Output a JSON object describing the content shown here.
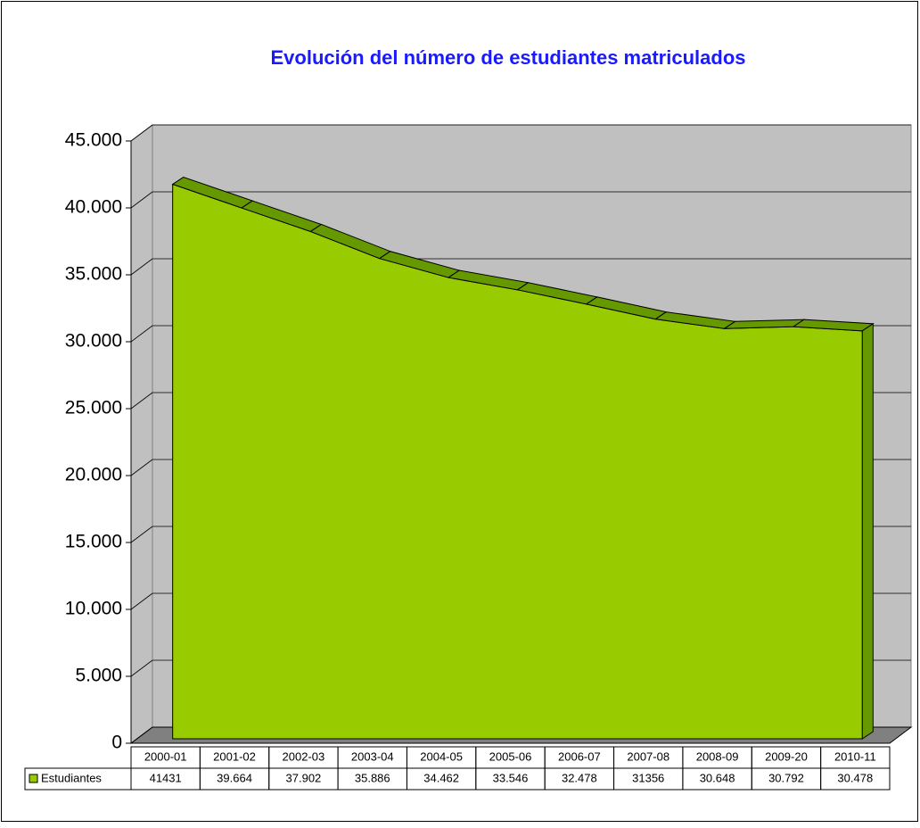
{
  "chart_data": {
    "type": "area3d",
    "title": "Evolución del número de estudiantes matriculados",
    "categories": [
      "2000-01",
      "2001-02",
      "2002-03",
      "2003-04",
      "2004-05",
      "2005-06",
      "2006-07",
      "2007-08",
      "2008-09",
      "2009-20",
      "2010-11"
    ],
    "series": [
      {
        "name": "Estudiantes",
        "color": "#99cc00",
        "values": [
          41431,
          39664,
          37902,
          35886,
          34462,
          33546,
          32478,
          31356,
          30648,
          30792,
          30478
        ],
        "value_labels": [
          "41431",
          "39.664",
          "37.902",
          "35.886",
          "34.462",
          "33.546",
          "32.478",
          "31356",
          "30.648",
          "30.792",
          "30.478"
        ]
      }
    ],
    "ylim": [
      0,
      45000
    ],
    "yticks": [
      0,
      {
        "value": 5000,
        "label": "5.000"
      },
      {
        "value": 10000,
        "label": "10.000"
      },
      {
        "value": 15000,
        "label": "15.000"
      },
      {
        "value": 20000,
        "label": "20.000"
      },
      {
        "value": 25000,
        "label": "25.000"
      },
      {
        "value": 30000,
        "label": "30.000"
      },
      {
        "value": 35000,
        "label": "35.000"
      },
      {
        "value": 40000,
        "label": "40.000"
      },
      {
        "value": 45000,
        "label": "45.000"
      }
    ],
    "grid": true
  }
}
